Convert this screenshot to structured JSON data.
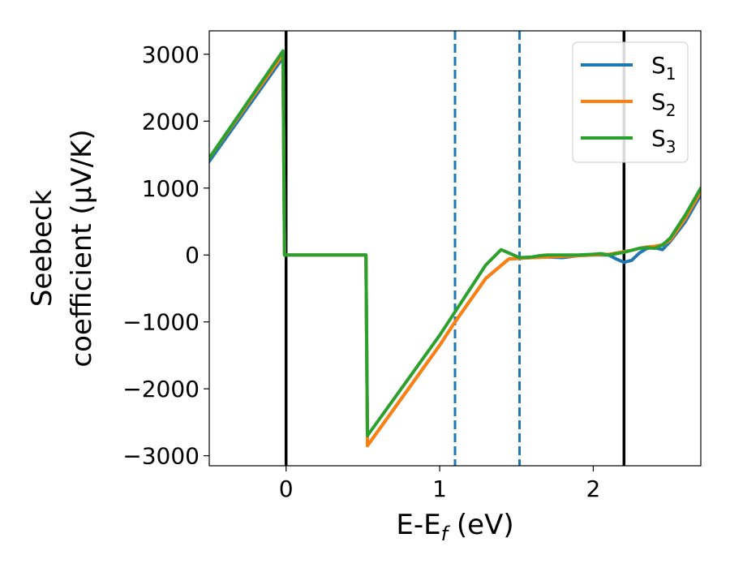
{
  "chart_data": {
    "type": "line",
    "xlabel": "E-E",
    "xlabel_sub": "f",
    "xlabel_unit": " (eV)",
    "ylabel_line1": "Seebeck",
    "ylabel_line2": "coefficient  (μV/K)",
    "xlim": [
      -0.5,
      2.7
    ],
    "ylim": [
      -3150,
      3350
    ],
    "x_ticks": [
      0,
      1,
      2
    ],
    "x_tick_labels": [
      "0",
      "1",
      "2"
    ],
    "y_ticks": [
      -3000,
      -2000,
      -1000,
      0,
      1000,
      2000,
      3000
    ],
    "y_tick_labels": [
      "−3000",
      "−2000",
      "−1000",
      "0",
      "1000",
      "2000",
      "3000"
    ],
    "grid": false,
    "legend_position": "top-right",
    "vlines": [
      {
        "x": 0.0,
        "style": "solid",
        "color": "#000000"
      },
      {
        "x": 2.2,
        "style": "solid",
        "color": "#000000"
      },
      {
        "x": 1.1,
        "style": "dashed",
        "color": "#1f77b4"
      },
      {
        "x": 1.52,
        "style": "dashed",
        "color": "#1f77b4"
      }
    ],
    "series": [
      {
        "name": "S",
        "name_sub": "1",
        "color": "#1f77b4",
        "x": [
          -0.5,
          -0.02,
          -0.01,
          0.52,
          0.53,
          1.0,
          1.1,
          1.3,
          1.45,
          1.52,
          1.6,
          1.7,
          1.8,
          1.9,
          2.0,
          2.1,
          2.15,
          2.2,
          2.25,
          2.3,
          2.35,
          2.4,
          2.45,
          2.5,
          2.6,
          2.7
        ],
        "y": [
          1400,
          2950,
          0,
          0,
          -2850,
          -1350,
          -1000,
          -350,
          -60,
          -50,
          -40,
          -30,
          -40,
          -10,
          0,
          0,
          -60,
          -110,
          -80,
          30,
          100,
          110,
          80,
          200,
          500,
          900
        ]
      },
      {
        "name": "S",
        "name_sub": "2",
        "color": "#ff7f0e",
        "x": [
          -0.5,
          -0.02,
          -0.01,
          0.52,
          0.53,
          1.0,
          1.1,
          1.3,
          1.45,
          1.52,
          1.6,
          1.7,
          1.8,
          1.9,
          2.0,
          2.1,
          2.15,
          2.2,
          2.25,
          2.3,
          2.35,
          2.4,
          2.45,
          2.5,
          2.6,
          2.7
        ],
        "y": [
          1450,
          3000,
          0,
          0,
          -2850,
          -1350,
          -1000,
          -350,
          -60,
          -50,
          -40,
          -30,
          -20,
          -10,
          0,
          10,
          30,
          50,
          70,
          100,
          120,
          130,
          150,
          220,
          550,
          950
        ]
      },
      {
        "name": "S",
        "name_sub": "3",
        "color": "#2ca02c",
        "x": [
          -0.5,
          -0.02,
          -0.01,
          0.52,
          0.53,
          1.0,
          1.1,
          1.3,
          1.4,
          1.45,
          1.52,
          1.6,
          1.65,
          1.7,
          1.8,
          1.9,
          2.0,
          2.05,
          2.1,
          2.15,
          2.2,
          2.3,
          2.35,
          2.4,
          2.45,
          2.5,
          2.6,
          2.7
        ],
        "y": [
          1450,
          3050,
          0,
          0,
          -2700,
          -1200,
          -850,
          -150,
          80,
          30,
          -40,
          -30,
          -10,
          0,
          0,
          0,
          10,
          20,
          0,
          20,
          40,
          100,
          110,
          100,
          150,
          250,
          600,
          1000
        ]
      }
    ]
  }
}
